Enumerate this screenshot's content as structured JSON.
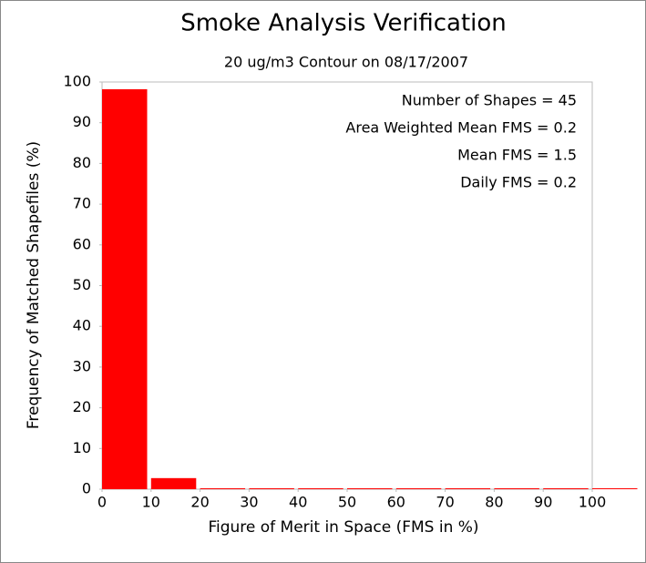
{
  "chart_data": {
    "type": "histogram",
    "title": "Smoke Analysis Verification",
    "subtitle": "20 ug/m3 Contour on 08/17/2007",
    "x_label": "Figure of Merit in Space (FMS in %)",
    "y_label": "Frequency of Matched Shapefiles (%)",
    "bins": [
      0,
      10,
      20,
      30,
      40,
      50,
      60,
      70,
      80,
      90,
      100,
      110
    ],
    "values": [
      98,
      2.5,
      0,
      0,
      0,
      0,
      0,
      0,
      0,
      0,
      0
    ],
    "color": "#ff0000",
    "xlim": [
      0,
      100
    ],
    "ylim": [
      0,
      100
    ],
    "xticks": [
      0,
      10,
      20,
      30,
      40,
      50,
      60,
      70,
      80,
      90,
      100
    ],
    "yticks": [
      0,
      10,
      20,
      30,
      40,
      50,
      60,
      70,
      80,
      90,
      100
    ],
    "annotations": [
      "Number of Shapes = 45",
      "Area Weighted Mean FMS = 0.2",
      "Mean FMS = 1.5",
      "Daily FMS = 0.2"
    ]
  }
}
